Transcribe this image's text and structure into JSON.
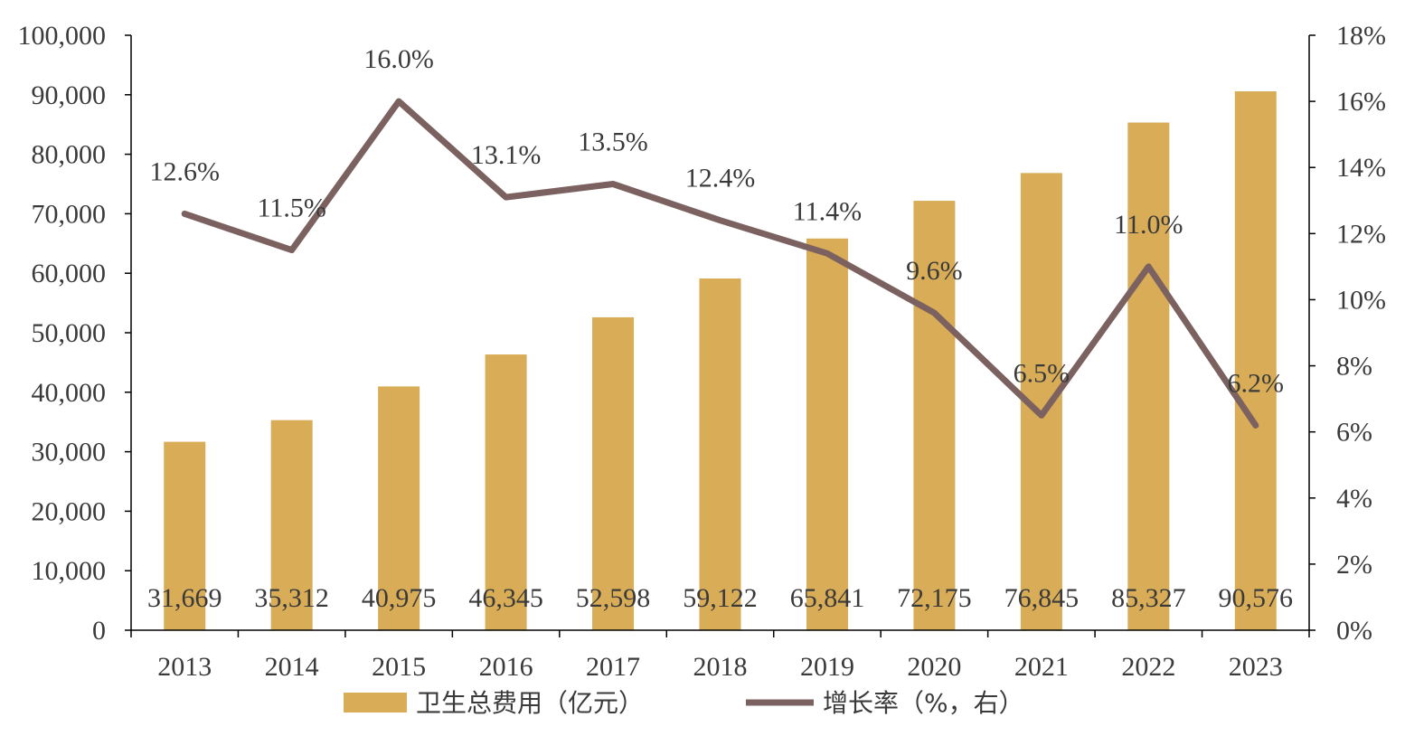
{
  "chart_data": {
    "type": "bar",
    "categories": [
      "2013",
      "2014",
      "2015",
      "2016",
      "2017",
      "2018",
      "2019",
      "2020",
      "2021",
      "2022",
      "2023"
    ],
    "series": [
      {
        "name": "卫生总费用（亿元）",
        "type": "bar",
        "axis": "left",
        "values": [
          31669,
          35312,
          40975,
          46345,
          52598,
          59122,
          65841,
          72175,
          76845,
          85327,
          90576
        ],
        "labels": [
          "31,669",
          "35,312",
          "40,975",
          "46,345",
          "52,598",
          "59,122",
          "65,841",
          "72,175",
          "76,845",
          "85,327",
          "90,576"
        ]
      },
      {
        "name": "增长率（%，右）",
        "type": "line",
        "axis": "right",
        "values": [
          12.6,
          11.5,
          16.0,
          13.1,
          13.5,
          12.4,
          11.4,
          9.6,
          6.5,
          11.0,
          6.2
        ],
        "labels": [
          "12.6%",
          "11.5%",
          "16.0%",
          "13.1%",
          "13.5%",
          "12.4%",
          "11.4%",
          "9.6%",
          "6.5%",
          "11.0%",
          "6.2%"
        ]
      }
    ],
    "y_left": {
      "ylim": [
        0,
        100000
      ],
      "ticks": [
        "0",
        "10,000",
        "20,000",
        "30,000",
        "40,000",
        "50,000",
        "60,000",
        "70,000",
        "80,000",
        "90,000",
        "100,000"
      ]
    },
    "y_right": {
      "ylim": [
        0,
        18
      ],
      "ticks": [
        "0%",
        "2%",
        "4%",
        "6%",
        "8%",
        "10%",
        "12%",
        "14%",
        "16%",
        "18%"
      ]
    },
    "grid": false,
    "legend_position": "bottom",
    "colors": {
      "bar": "#D9AC57",
      "line": "#7B6260",
      "axis": "#000000",
      "text": "#3a3a3a"
    }
  }
}
